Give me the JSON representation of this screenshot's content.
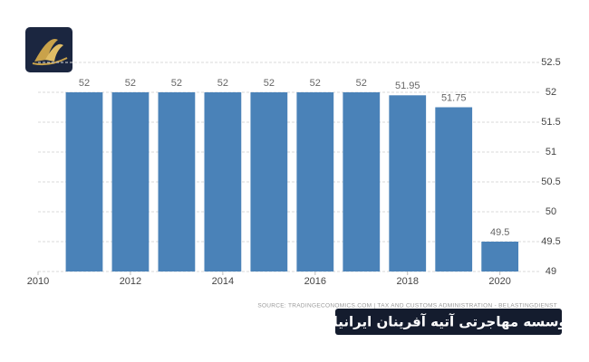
{
  "chart_data": {
    "type": "bar",
    "x": [
      2011,
      2012,
      2013,
      2014,
      2015,
      2016,
      2017,
      2018,
      2019,
      2020
    ],
    "values": [
      52,
      52,
      52,
      52,
      52,
      52,
      52,
      51.95,
      51.75,
      49.5
    ],
    "color": "#4a82b8",
    "xlim": [
      2010,
      2020.85
    ],
    "xticks": [
      2010,
      2012,
      2014,
      2016,
      2018,
      2020
    ],
    "ylim": [
      49,
      52.5
    ],
    "yticks": [
      49,
      49.5,
      50,
      50.5,
      51,
      51.5,
      52,
      52.5
    ],
    "grid": true,
    "source": "SOURCE: TRADINGECONOMICS.COM | TAX AND CUSTOMS ADMINISTRATION - BELASTINGDIENST"
  },
  "banner": {
    "text": "موسسه مهاجرتی آتیه آفرینان ایرانیان"
  }
}
